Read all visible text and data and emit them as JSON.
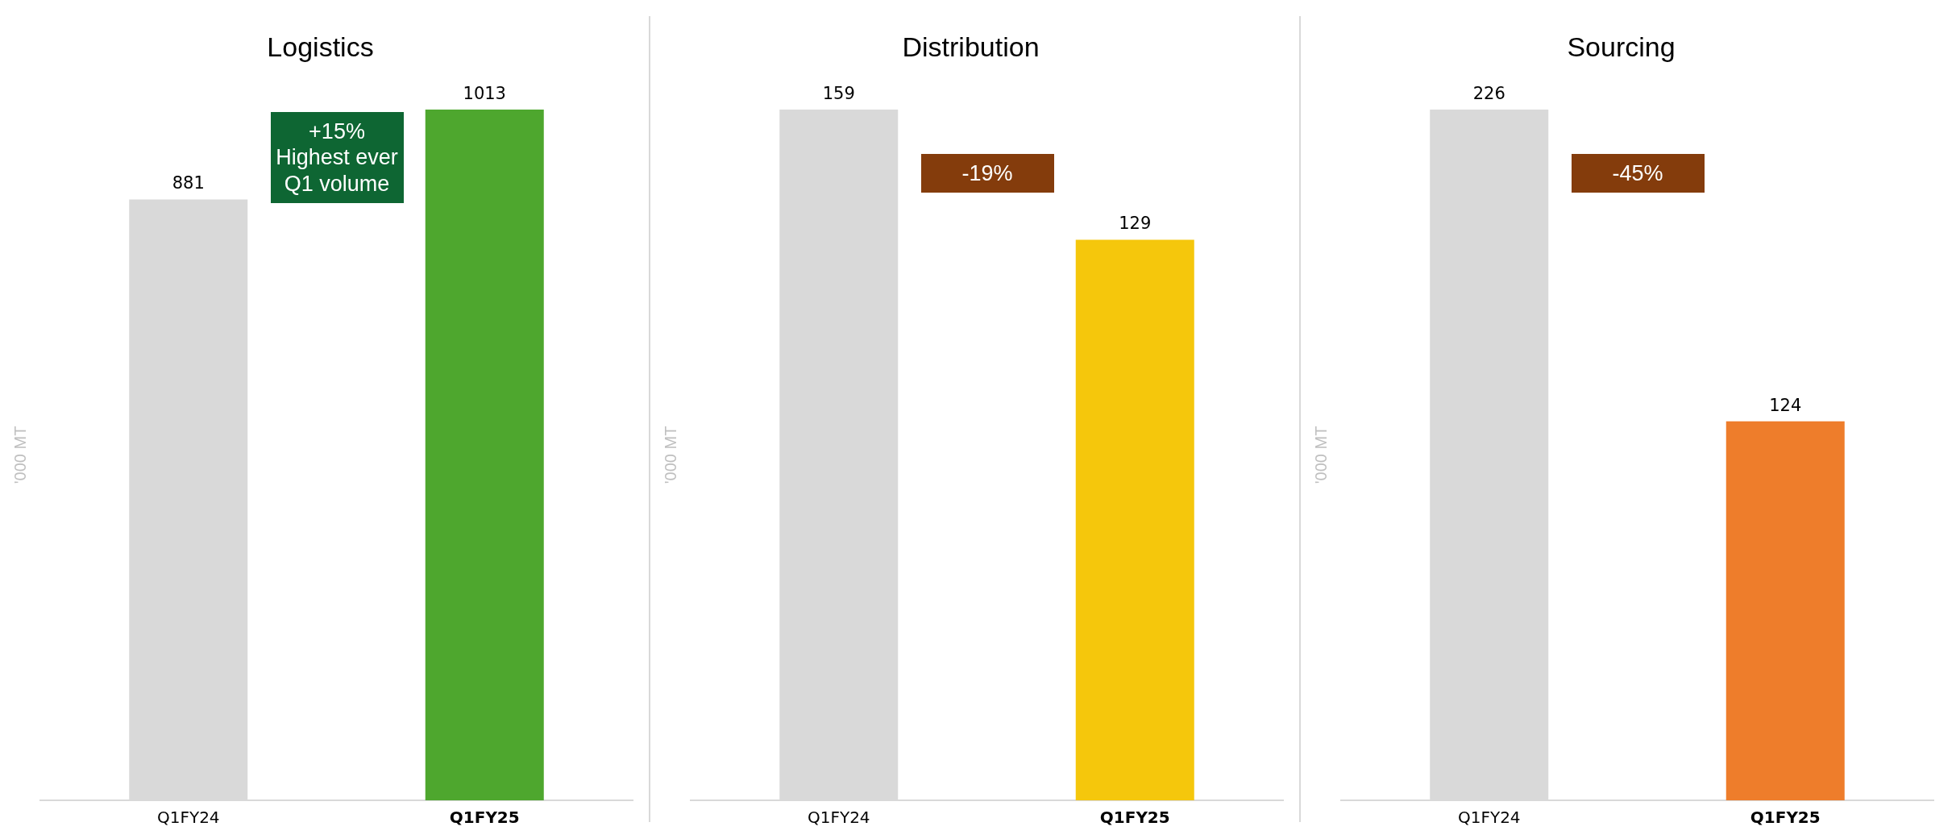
{
  "chart_data": [
    {
      "type": "bar",
      "title": "Logistics",
      "ylabel": "'000 MT",
      "categories": [
        "Q1FY24",
        "Q1FY25"
      ],
      "values": [
        881,
        1013
      ],
      "colors": [
        "#d9d9d9",
        "#4ea72e"
      ],
      "data_labels": true,
      "annotations": [
        "+15% Highest ever Q1 volume"
      ]
    },
    {
      "type": "bar",
      "title": "Distribution",
      "ylabel": "'000 MT",
      "categories": [
        "Q1FY24",
        "Q1FY25"
      ],
      "values": [
        159,
        129
      ],
      "colors": [
        "#d9d9d9",
        "#f5c70c"
      ],
      "data_labels": true,
      "annotations": [
        "-19%"
      ]
    },
    {
      "type": "bar",
      "title": "Sourcing",
      "ylabel": "'000 MT",
      "categories": [
        "Q1FY24",
        "Q1FY25"
      ],
      "values": [
        226,
        124
      ],
      "colors": [
        "#d9d9d9",
        "#ee7d2b"
      ],
      "data_labels": true,
      "annotations": [
        "-45%"
      ]
    }
  ]
}
